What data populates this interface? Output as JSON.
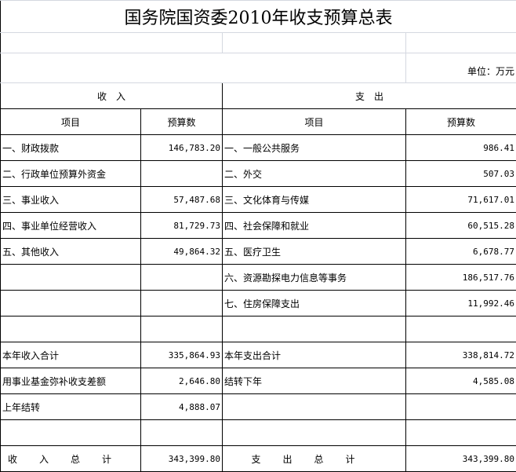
{
  "title": "国务院国资委2010年收支预算总表",
  "unit": "单位：万元",
  "sections": {
    "income": "收　入",
    "expense": "支　出"
  },
  "columns": {
    "item": "项目",
    "budget": "预算数"
  },
  "rows": [
    {
      "in_item": "一、财政拨款",
      "in_value": "146,783.20",
      "out_item": "一、一般公共服务",
      "out_value": "986.41"
    },
    {
      "in_item": "二、行政单位预算外资金",
      "in_value": "",
      "out_item": "二、外交",
      "out_value": "507.03"
    },
    {
      "in_item": "三、事业收入",
      "in_value": "57,487.68",
      "out_item": "三、文化体育与传媒",
      "out_value": "71,617.01"
    },
    {
      "in_item": "四、事业单位经营收入",
      "in_value": "81,729.73",
      "out_item": "四、社会保障和就业",
      "out_value": "60,515.28"
    },
    {
      "in_item": "五、其他收入",
      "in_value": "49,864.32",
      "out_item": "五、医疗卫生",
      "out_value": "6,678.77"
    },
    {
      "in_item": "",
      "in_value": "",
      "out_item": "六、资源勘探电力信息等事务",
      "out_value": "186,517.76"
    },
    {
      "in_item": "",
      "in_value": "",
      "out_item": "七、住房保障支出",
      "out_value": "11,992.46"
    },
    {
      "in_item": "",
      "in_value": "",
      "out_item": "",
      "out_value": ""
    },
    {
      "in_item": "本年收入合计",
      "in_value": "335,864.93",
      "out_item": "本年支出合计",
      "out_value": "338,814.72"
    },
    {
      "in_item": "用事业基金弥补收支差额",
      "in_value": "2,646.80",
      "out_item": "结转下年",
      "out_value": "4,585.08"
    },
    {
      "in_item": "上年结转",
      "in_value": "4,888.07",
      "out_item": "",
      "out_value": ""
    },
    {
      "in_item": "",
      "in_value": "",
      "out_item": "",
      "out_value": ""
    }
  ],
  "totals": {
    "in_label": "收入总计",
    "in_value": "343,399.80",
    "out_label": "支出总计",
    "out_value": "343,399.80"
  }
}
